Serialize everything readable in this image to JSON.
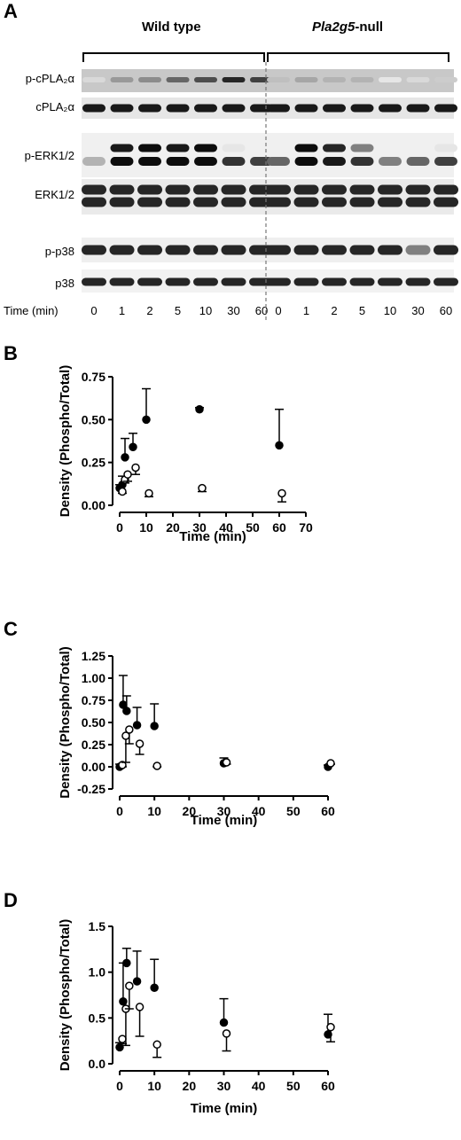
{
  "panelA": {
    "letter": "A",
    "groups": [
      {
        "name": "Wild type",
        "emph": ""
      },
      {
        "name": "-null",
        "emph": "Pla2g5"
      }
    ],
    "blots": [
      {
        "label": "p-cPLA₂α"
      },
      {
        "label": "cPLA₂α"
      },
      {
        "label": "p-ERK1/2"
      },
      {
        "label": "ERK1/2"
      },
      {
        "label": "p-p38"
      },
      {
        "label": "p38"
      }
    ],
    "time_label": "Time (min)",
    "time_points": [
      "0",
      "1",
      "2",
      "5",
      "10",
      "30",
      "60",
      "0",
      "1",
      "2",
      "5",
      "10",
      "30",
      "60"
    ]
  },
  "chart_data": [
    {
      "panel": "B",
      "type": "scatter",
      "xlabel": "Time (min)",
      "ylabel": "Density (Phospho/Total)",
      "xlim": [
        0,
        70
      ],
      "ylim": [
        0,
        0.75
      ],
      "xticks": [
        "0",
        "10",
        "20",
        "30",
        "40",
        "50",
        "60",
        "70"
      ],
      "yticks": [
        "0.00",
        "0.25",
        "0.50",
        "0.75"
      ],
      "series": [
        {
          "marker": "filled",
          "x": [
            0,
            1,
            2,
            5,
            10,
            30,
            60
          ],
          "y": [
            0.1,
            0.12,
            0.28,
            0.34,
            0.5,
            0.56,
            0.35
          ],
          "err": [
            0.02,
            0.05,
            0.11,
            0.08,
            0.18,
            0.01,
            0.21
          ]
        },
        {
          "marker": "open",
          "x": [
            0,
            1,
            2,
            5,
            10,
            30,
            60
          ],
          "y": [
            0.08,
            0.15,
            0.18,
            0.22,
            0.07,
            0.1,
            0.07
          ],
          "err": [
            0.01,
            0.02,
            0.04,
            0.04,
            0.02,
            0.02,
            0.05
          ]
        }
      ]
    },
    {
      "panel": "C",
      "type": "scatter",
      "xlabel": "Time (min)",
      "ylabel": "Density (Phospho/Total)",
      "xlim": [
        0,
        60
      ],
      "ylim": [
        -0.25,
        1.25
      ],
      "xticks": [
        "0",
        "10",
        "20",
        "30",
        "40",
        "50",
        "60"
      ],
      "yticks": [
        "-0.25",
        "0.00",
        "0.25",
        "0.50",
        "0.75",
        "1.00",
        "1.25"
      ],
      "series": [
        {
          "marker": "filled",
          "x": [
            0,
            1,
            2,
            5,
            10,
            30,
            60
          ],
          "y": [
            0.0,
            0.7,
            0.63,
            0.47,
            0.46,
            0.04,
            0.0
          ],
          "err": [
            0.03,
            0.33,
            0.17,
            0.2,
            0.25,
            0.06,
            0.02
          ]
        },
        {
          "marker": "open",
          "x": [
            0,
            1,
            2,
            5,
            10,
            30,
            60
          ],
          "y": [
            0.02,
            0.35,
            0.42,
            0.26,
            0.01,
            0.05,
            0.04
          ],
          "err": [
            0.02,
            0.3,
            0.16,
            0.12,
            0.01,
            0.02,
            0.01
          ]
        }
      ]
    },
    {
      "panel": "D",
      "type": "scatter",
      "xlabel": "Time (min)",
      "ylabel": "Density (Phospho/Total)",
      "xlim": [
        0,
        60
      ],
      "ylim": [
        0,
        1.5
      ],
      "xticks": [
        "0",
        "10",
        "20",
        "30",
        "40",
        "50",
        "60"
      ],
      "yticks": [
        "0.0",
        "0.5",
        "1.0",
        "1.5"
      ],
      "series": [
        {
          "marker": "filled",
          "x": [
            0,
            1,
            2,
            5,
            10,
            30,
            60
          ],
          "y": [
            0.18,
            0.68,
            1.1,
            0.9,
            0.83,
            0.45,
            0.32
          ],
          "err": [
            0.05,
            0.42,
            0.16,
            0.33,
            0.31,
            0.26,
            0.22
          ]
        },
        {
          "marker": "open",
          "x": [
            0,
            1,
            2,
            5,
            10,
            30,
            60
          ],
          "y": [
            0.27,
            0.6,
            0.85,
            0.62,
            0.21,
            0.33,
            0.4
          ],
          "err": [
            0.05,
            0.4,
            0.25,
            0.32,
            0.14,
            0.19,
            0.16
          ]
        }
      ]
    }
  ]
}
